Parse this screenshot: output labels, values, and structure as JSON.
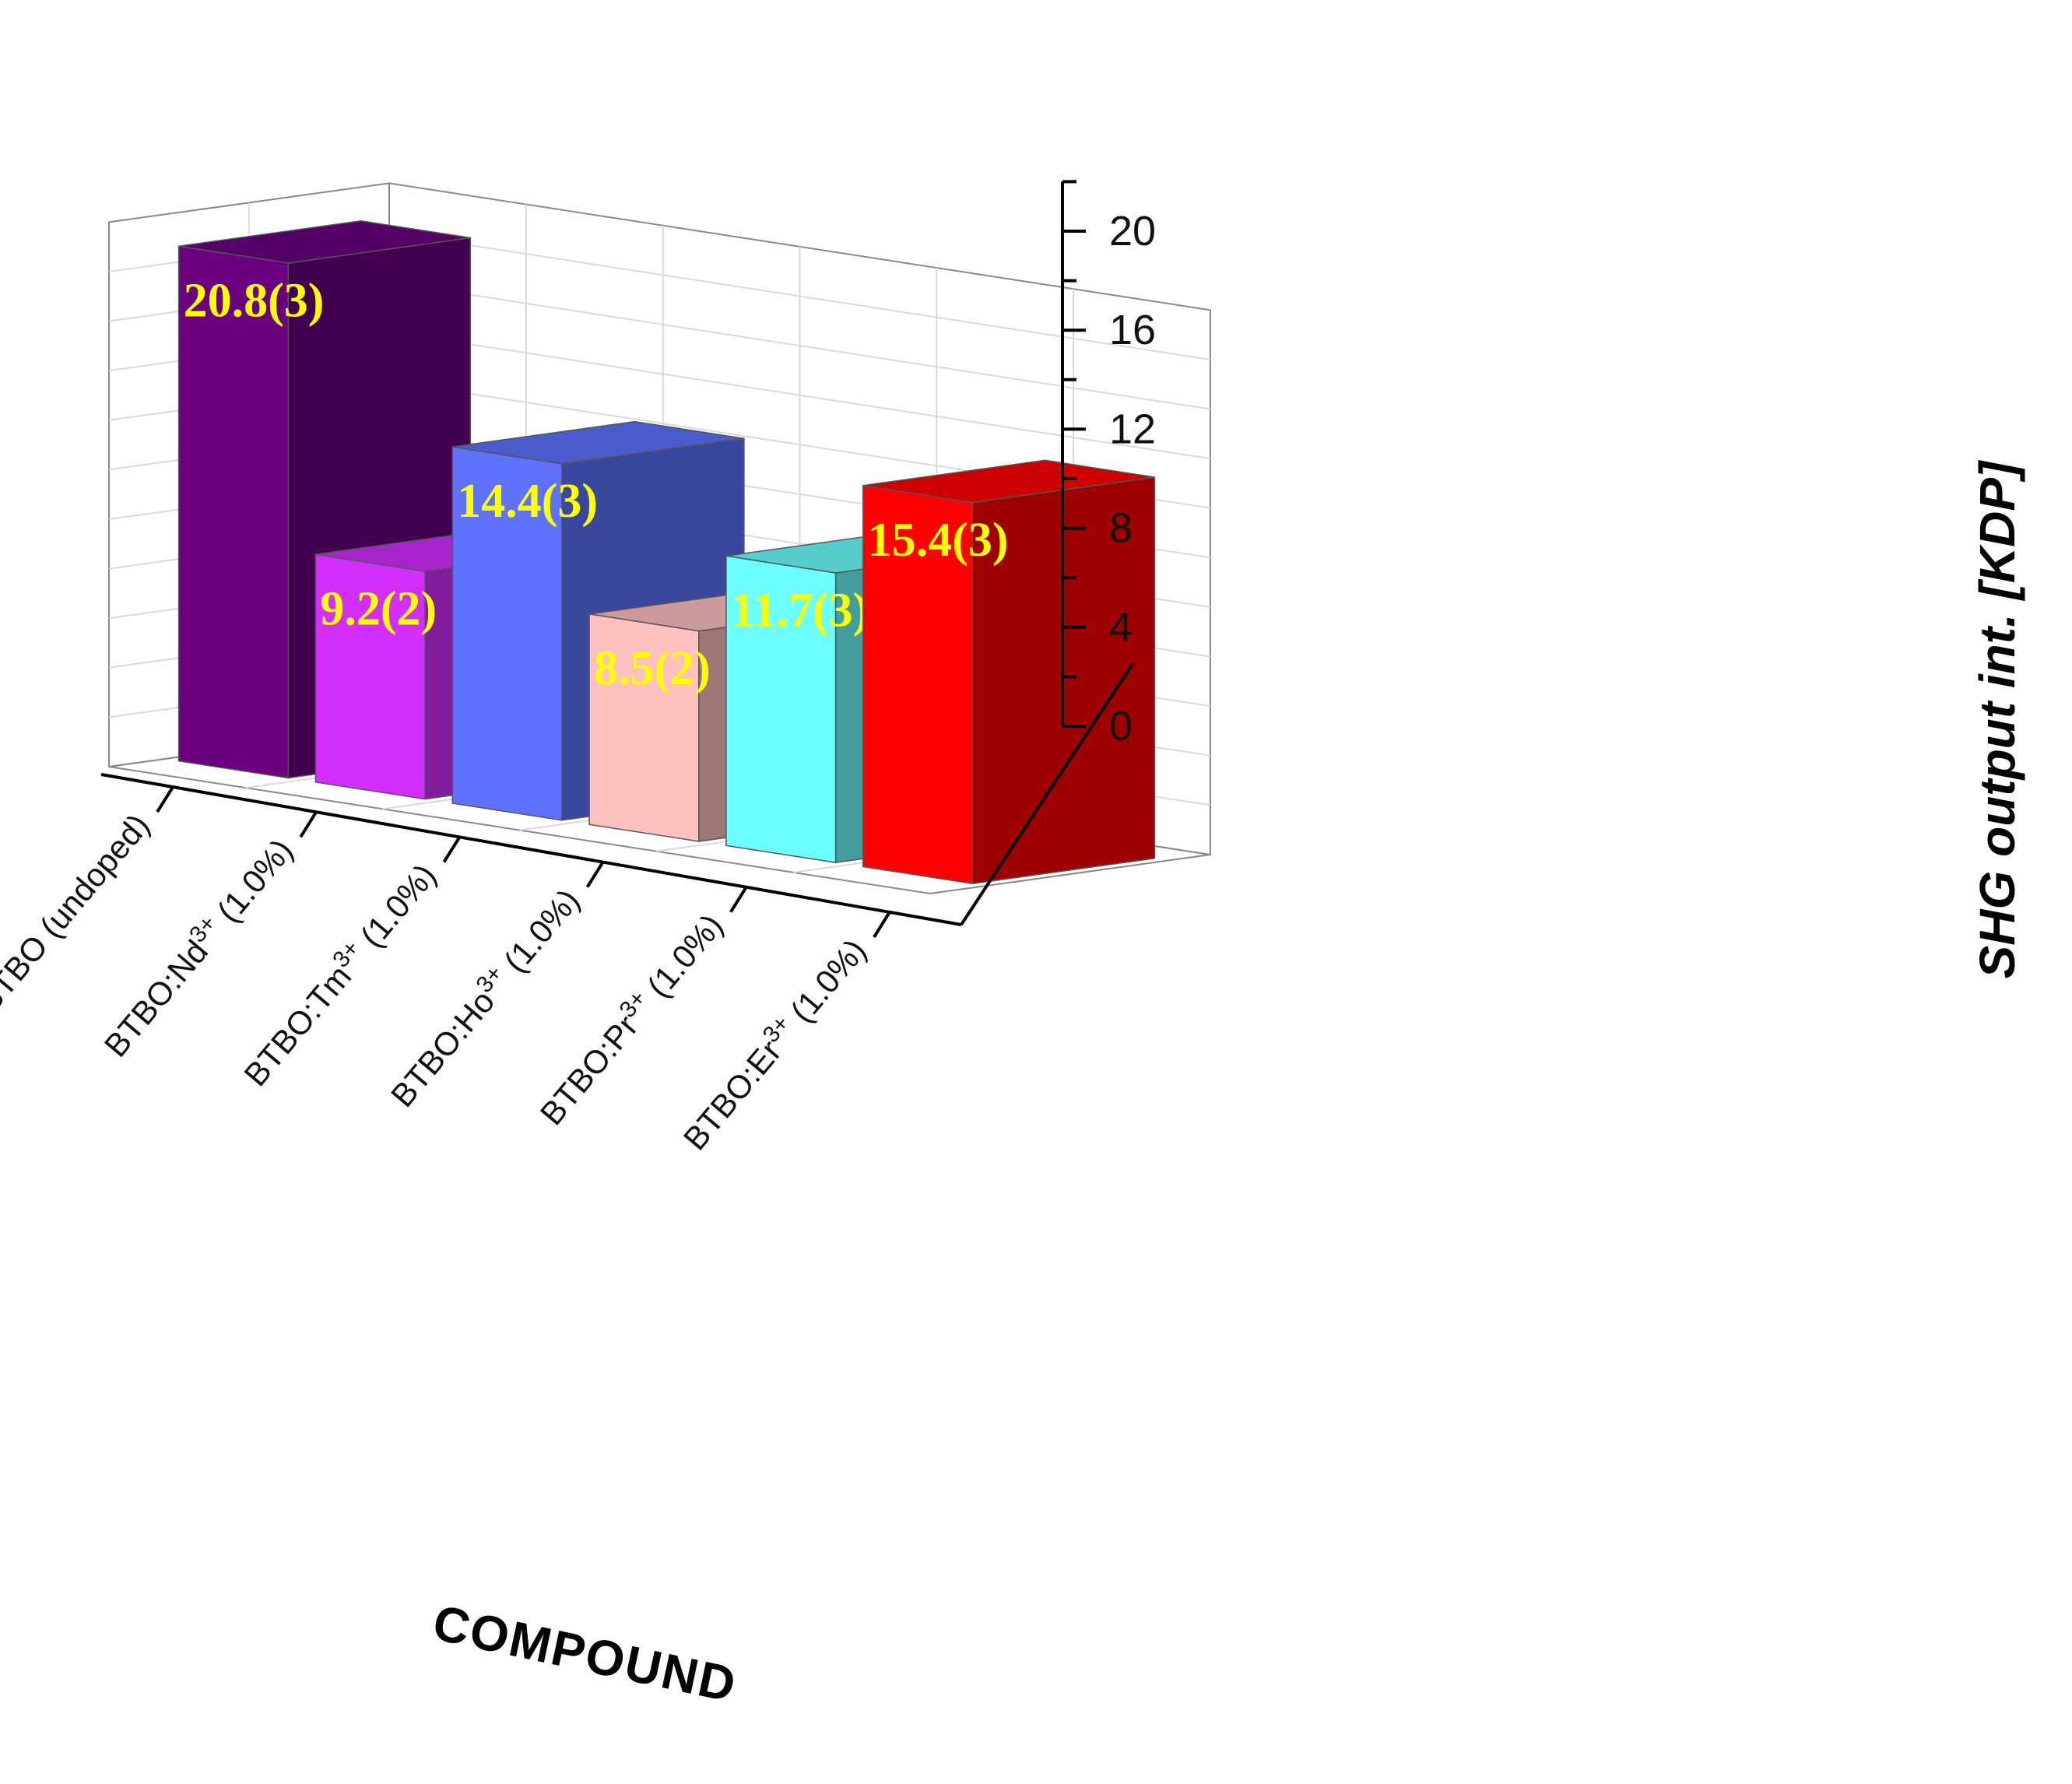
{
  "chart_data": {
    "type": "bar",
    "style": "3d",
    "categories": [
      {
        "base": "BTBO (undoped)",
        "sup": "",
        "suffix": ""
      },
      {
        "base": "BTBO:Nd",
        "sup": "3+",
        "suffix": " (1.0%)"
      },
      {
        "base": "BTBO:Tm",
        "sup": "3+",
        "suffix": " (1.0%)"
      },
      {
        "base": "BTBO:Ho",
        "sup": "3+",
        "suffix": " (1.0%)"
      },
      {
        "base": "BTBO:Pr",
        "sup": "3+",
        "suffix": " (1.0%)"
      },
      {
        "base": "BTBO:Er",
        "sup": "3+",
        "suffix": " (1.0%)"
      }
    ],
    "values": [
      20.8,
      9.2,
      14.4,
      8.5,
      11.7,
      15.4
    ],
    "value_labels": [
      "20.8(3)",
      "9.2(2)",
      "14.4(3)",
      "8.5(2)",
      "11.7(3)",
      "15.4(3)"
    ],
    "colors": [
      "#6a007f",
      "#d22eff",
      "#5e72ff",
      "#ffc0c0",
      "#6dffff",
      "#ff0000"
    ],
    "xlabel": "COMPOUND",
    "ylabel": "SHG output int. [KDP]",
    "ylim": [
      0,
      22
    ],
    "yticks": [
      "0",
      "4",
      "8",
      "12",
      "16",
      "20"
    ],
    "grid": true,
    "legend": "none"
  }
}
